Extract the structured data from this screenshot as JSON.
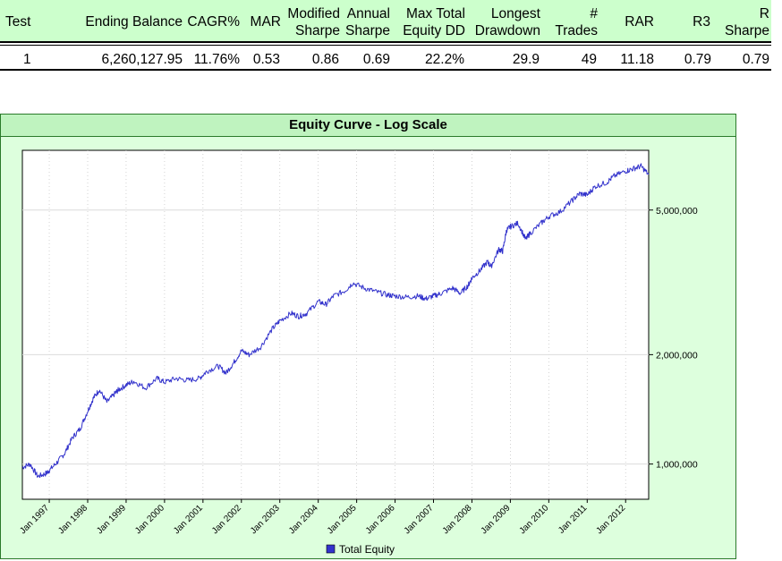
{
  "table": {
    "headers": [
      {
        "id": "test",
        "lines": [
          "Test"
        ]
      },
      {
        "id": "ending_balance",
        "lines": [
          "Ending Balance"
        ]
      },
      {
        "id": "cagr",
        "lines": [
          "CAGR%"
        ]
      },
      {
        "id": "mar",
        "lines": [
          "MAR"
        ]
      },
      {
        "id": "modified_sharpe",
        "lines": [
          "Modified",
          "Sharpe"
        ]
      },
      {
        "id": "annual_sharpe",
        "lines": [
          "Annual",
          "Sharpe"
        ]
      },
      {
        "id": "max_total_equity_dd",
        "lines": [
          "Max Total",
          "Equity DD"
        ]
      },
      {
        "id": "longest_drawdown",
        "lines": [
          "Longest",
          "Drawdown"
        ]
      },
      {
        "id": "num_trades",
        "lines": [
          "#",
          "Trades"
        ]
      },
      {
        "id": "rar",
        "lines": [
          "RAR"
        ]
      },
      {
        "id": "r3",
        "lines": [
          "R3"
        ]
      },
      {
        "id": "r_sharpe",
        "lines": [
          "R",
          "Sharpe"
        ]
      }
    ],
    "row": {
      "test": "1",
      "ending_balance": "6,260,127.95",
      "cagr": "11.76%",
      "mar": "0.53",
      "modified_sharpe": "0.86",
      "annual_sharpe": "0.69",
      "max_total_equity_dd": "22.2%",
      "longest_drawdown": "29.9",
      "num_trades": "49",
      "rar": "11.18",
      "r3": "0.79",
      "r_sharpe": "0.79"
    },
    "header_bg": "#ccffcc"
  },
  "chart_data": {
    "type": "line",
    "title": "Equity Curve - Log Scale",
    "y_scale": "log",
    "ylim": [
      800000,
      7300000
    ],
    "y_ticks": [
      {
        "value": 1000000,
        "label": "1,000,000"
      },
      {
        "value": 2000000,
        "label": "2,000,000"
      },
      {
        "value": 5000000,
        "label": "5,000,000"
      }
    ],
    "x_range": [
      1996.3,
      2012.6
    ],
    "x_ticks": [
      {
        "value": 1997,
        "label": "Jan 1997"
      },
      {
        "value": 1998,
        "label": "Jan 1998"
      },
      {
        "value": 1999,
        "label": "Jan 1999"
      },
      {
        "value": 2000,
        "label": "Jan 2000"
      },
      {
        "value": 2001,
        "label": "Jan 2001"
      },
      {
        "value": 2002,
        "label": "Jan 2002"
      },
      {
        "value": 2003,
        "label": "Jan 2003"
      },
      {
        "value": 2004,
        "label": "Jan 2004"
      },
      {
        "value": 2005,
        "label": "Jan 2005"
      },
      {
        "value": 2006,
        "label": "Jan 2006"
      },
      {
        "value": 2007,
        "label": "Jan 2007"
      },
      {
        "value": 2008,
        "label": "Jan 2008"
      },
      {
        "value": 2009,
        "label": "Jan 2009"
      },
      {
        "value": 2010,
        "label": "Jan 2010"
      },
      {
        "value": 2011,
        "label": "Jan 2011"
      },
      {
        "value": 2012,
        "label": "Jan 2012"
      }
    ],
    "grid": true,
    "legend_position": "bottom",
    "series": [
      {
        "name": "Total Equity",
        "color": "#3333cc",
        "x": [
          1996.3,
          1996.5,
          1996.7,
          1996.9,
          1997.0,
          1997.2,
          1997.4,
          1997.6,
          1997.8,
          1998.0,
          1998.15,
          1998.3,
          1998.5,
          1998.7,
          1998.8,
          1999.0,
          1999.2,
          1999.5,
          1999.8,
          2000.0,
          2000.3,
          2000.6,
          2000.9,
          2001.1,
          2001.4,
          2001.6,
          2001.8,
          2002.0,
          2002.2,
          2002.5,
          2002.8,
          2003.0,
          2003.3,
          2003.5,
          2003.7,
          2004.0,
          2004.2,
          2004.4,
          2004.7,
          2004.9,
          2005.2,
          2005.5,
          2005.8,
          2006.0,
          2006.3,
          2006.6,
          2006.8,
          2007.0,
          2007.2,
          2007.5,
          2007.7,
          2007.9,
          2008.0,
          2008.2,
          2008.4,
          2008.5,
          2008.7,
          2008.8,
          2008.9,
          2009.0,
          2009.2,
          2009.4,
          2009.5,
          2009.8,
          2010.0,
          2010.3,
          2010.6,
          2010.8,
          2011.0,
          2011.2,
          2011.5,
          2011.7,
          2012.0,
          2012.2,
          2012.4,
          2012.6
        ],
        "y": [
          980000,
          1000000,
          925000,
          940000,
          960000,
          1010000,
          1070000,
          1180000,
          1250000,
          1400000,
          1520000,
          1600000,
          1480000,
          1560000,
          1600000,
          1650000,
          1690000,
          1620000,
          1720000,
          1680000,
          1720000,
          1700000,
          1720000,
          1800000,
          1860000,
          1780000,
          1900000,
          2050000,
          2000000,
          2100000,
          2350000,
          2480000,
          2600000,
          2550000,
          2600000,
          2800000,
          2750000,
          2900000,
          3000000,
          3150000,
          3050000,
          2980000,
          2920000,
          2900000,
          2880000,
          2900000,
          2850000,
          2900000,
          2950000,
          3050000,
          2950000,
          3100000,
          3250000,
          3400000,
          3600000,
          3500000,
          3900000,
          3850000,
          4400000,
          4500000,
          4600000,
          4150000,
          4300000,
          4600000,
          4800000,
          4950000,
          5300000,
          5550000,
          5500000,
          5800000,
          5950000,
          6200000,
          6400000,
          6500000,
          6600000,
          6260000
        ]
      }
    ],
    "legend": [
      "Total Equity"
    ]
  }
}
